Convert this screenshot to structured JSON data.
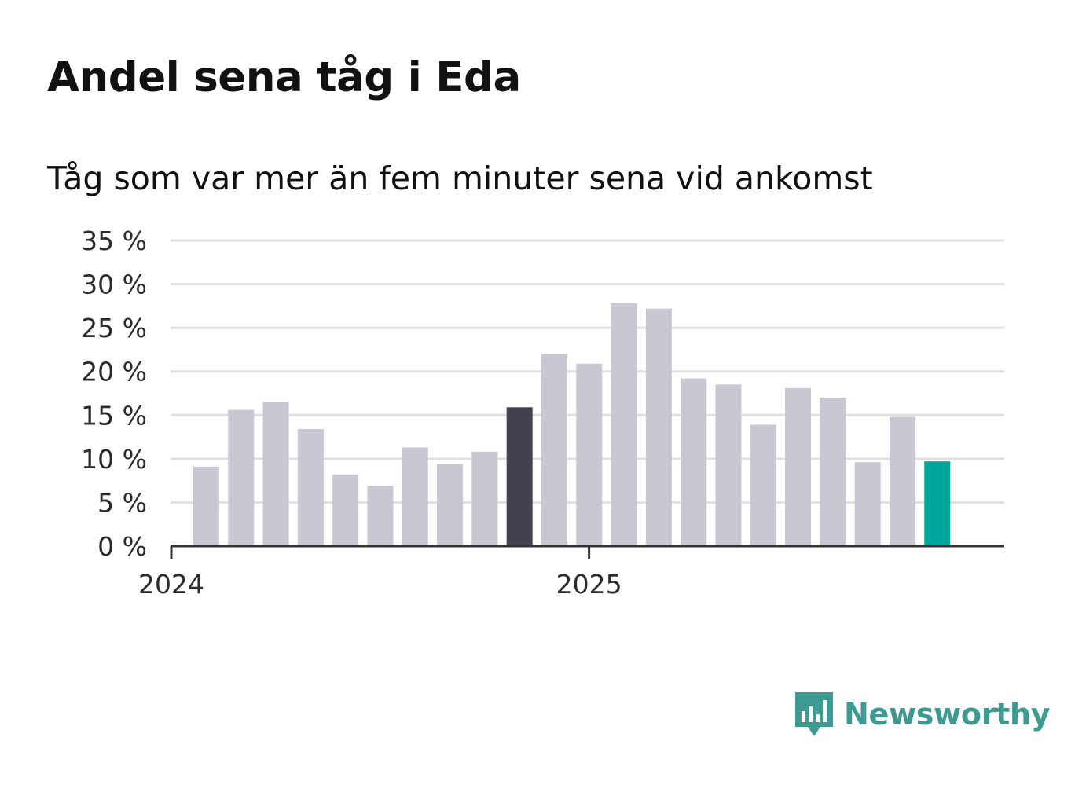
{
  "title": "Andel sena tåg i Eda",
  "subtitle": "Tåg som var mer än fem minuter sena vid ankomst",
  "brand": {
    "name": "Newsworthy",
    "color": "#3c9a91",
    "icon": "newsworthy-logo-icon"
  },
  "colors": {
    "bar": "#c8c7d2",
    "highlight_dark": "#43414e",
    "highlight_accent": "#00a699",
    "grid": "#e0e0e0",
    "axis": "#333333"
  },
  "chart_data": {
    "type": "bar",
    "title": "Andel sena tåg i Eda",
    "subtitle": "Tåg som var mer än fem minuter sena vid ankomst",
    "xlabel": "",
    "ylabel": "",
    "ylim": [
      0,
      35
    ],
    "y_ticks": [
      0,
      5,
      10,
      15,
      20,
      25,
      30,
      35
    ],
    "y_tick_labels": [
      "0 %",
      "5 %",
      "10 %",
      "15 %",
      "20 %",
      "25 %",
      "30 %",
      "35 %"
    ],
    "x_tick_labels": [
      {
        "label": "2024",
        "at_index": 0
      },
      {
        "label": "2025",
        "at_index": 12
      }
    ],
    "categories": [
      "2024-01",
      "2024-02",
      "2024-03",
      "2024-04",
      "2024-05",
      "2024-06",
      "2024-07",
      "2024-08",
      "2024-09",
      "2024-10",
      "2024-11",
      "2024-12",
      "2025-01",
      "2025-02",
      "2025-03",
      "2025-04",
      "2025-05",
      "2025-06",
      "2025-07",
      "2025-08",
      "2025-09",
      "2025-10",
      "2025-11",
      "2025-12"
    ],
    "values": [
      null,
      9.1,
      15.6,
      16.5,
      13.4,
      8.2,
      6.9,
      11.3,
      9.4,
      10.8,
      15.9,
      22.0,
      20.9,
      27.8,
      27.2,
      19.2,
      18.5,
      13.9,
      18.1,
      17.0,
      9.6,
      14.8,
      9.7,
      null
    ],
    "highlights": [
      {
        "index": 10,
        "color": "#43414e"
      },
      {
        "index": 22,
        "color": "#00a699"
      }
    ],
    "grid": true
  }
}
